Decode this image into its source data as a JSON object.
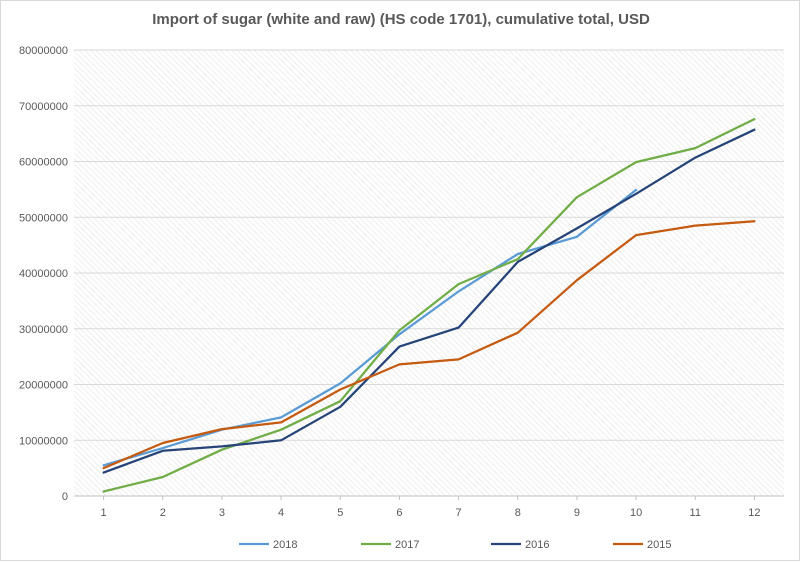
{
  "chart_data": {
    "type": "line",
    "title": "Import of sugar (white and raw) (HS code 1701), cumulative total, USD",
    "xlabel": "",
    "ylabel": "",
    "categories": [
      "1",
      "2",
      "3",
      "4",
      "5",
      "6",
      "7",
      "8",
      "9",
      "10",
      "11",
      "12"
    ],
    "ylim": [
      0,
      80000000
    ],
    "yticks": [
      "0",
      "10000000",
      "20000000",
      "30000000",
      "40000000",
      "50000000",
      "60000000",
      "70000000",
      "80000000"
    ],
    "grid": true,
    "legend_position": "bottom",
    "series": [
      {
        "name": "2018",
        "color": "#5b9bd5",
        "values": [
          5500000,
          8600000,
          11900000,
          14100000,
          20200000,
          29000000,
          36700000,
          43400000,
          46500000,
          54900000,
          null,
          null
        ]
      },
      {
        "name": "2017",
        "color": "#70ad47",
        "values": [
          800000,
          3400000,
          8300000,
          11900000,
          17000000,
          29700000,
          38000000,
          42500000,
          53600000,
          59900000,
          62400000,
          67600000
        ]
      },
      {
        "name": "2016",
        "color": "#264478",
        "values": [
          4200000,
          8100000,
          8900000,
          10000000,
          16000000,
          26800000,
          30200000,
          42000000,
          48000000,
          54200000,
          60700000,
          65700000
        ]
      },
      {
        "name": "2015",
        "color": "#c55a11",
        "values": [
          5000000,
          9500000,
          12000000,
          13200000,
          19100000,
          23600000,
          24500000,
          29300000,
          38700000,
          46800000,
          48500000,
          49300000
        ]
      }
    ]
  }
}
